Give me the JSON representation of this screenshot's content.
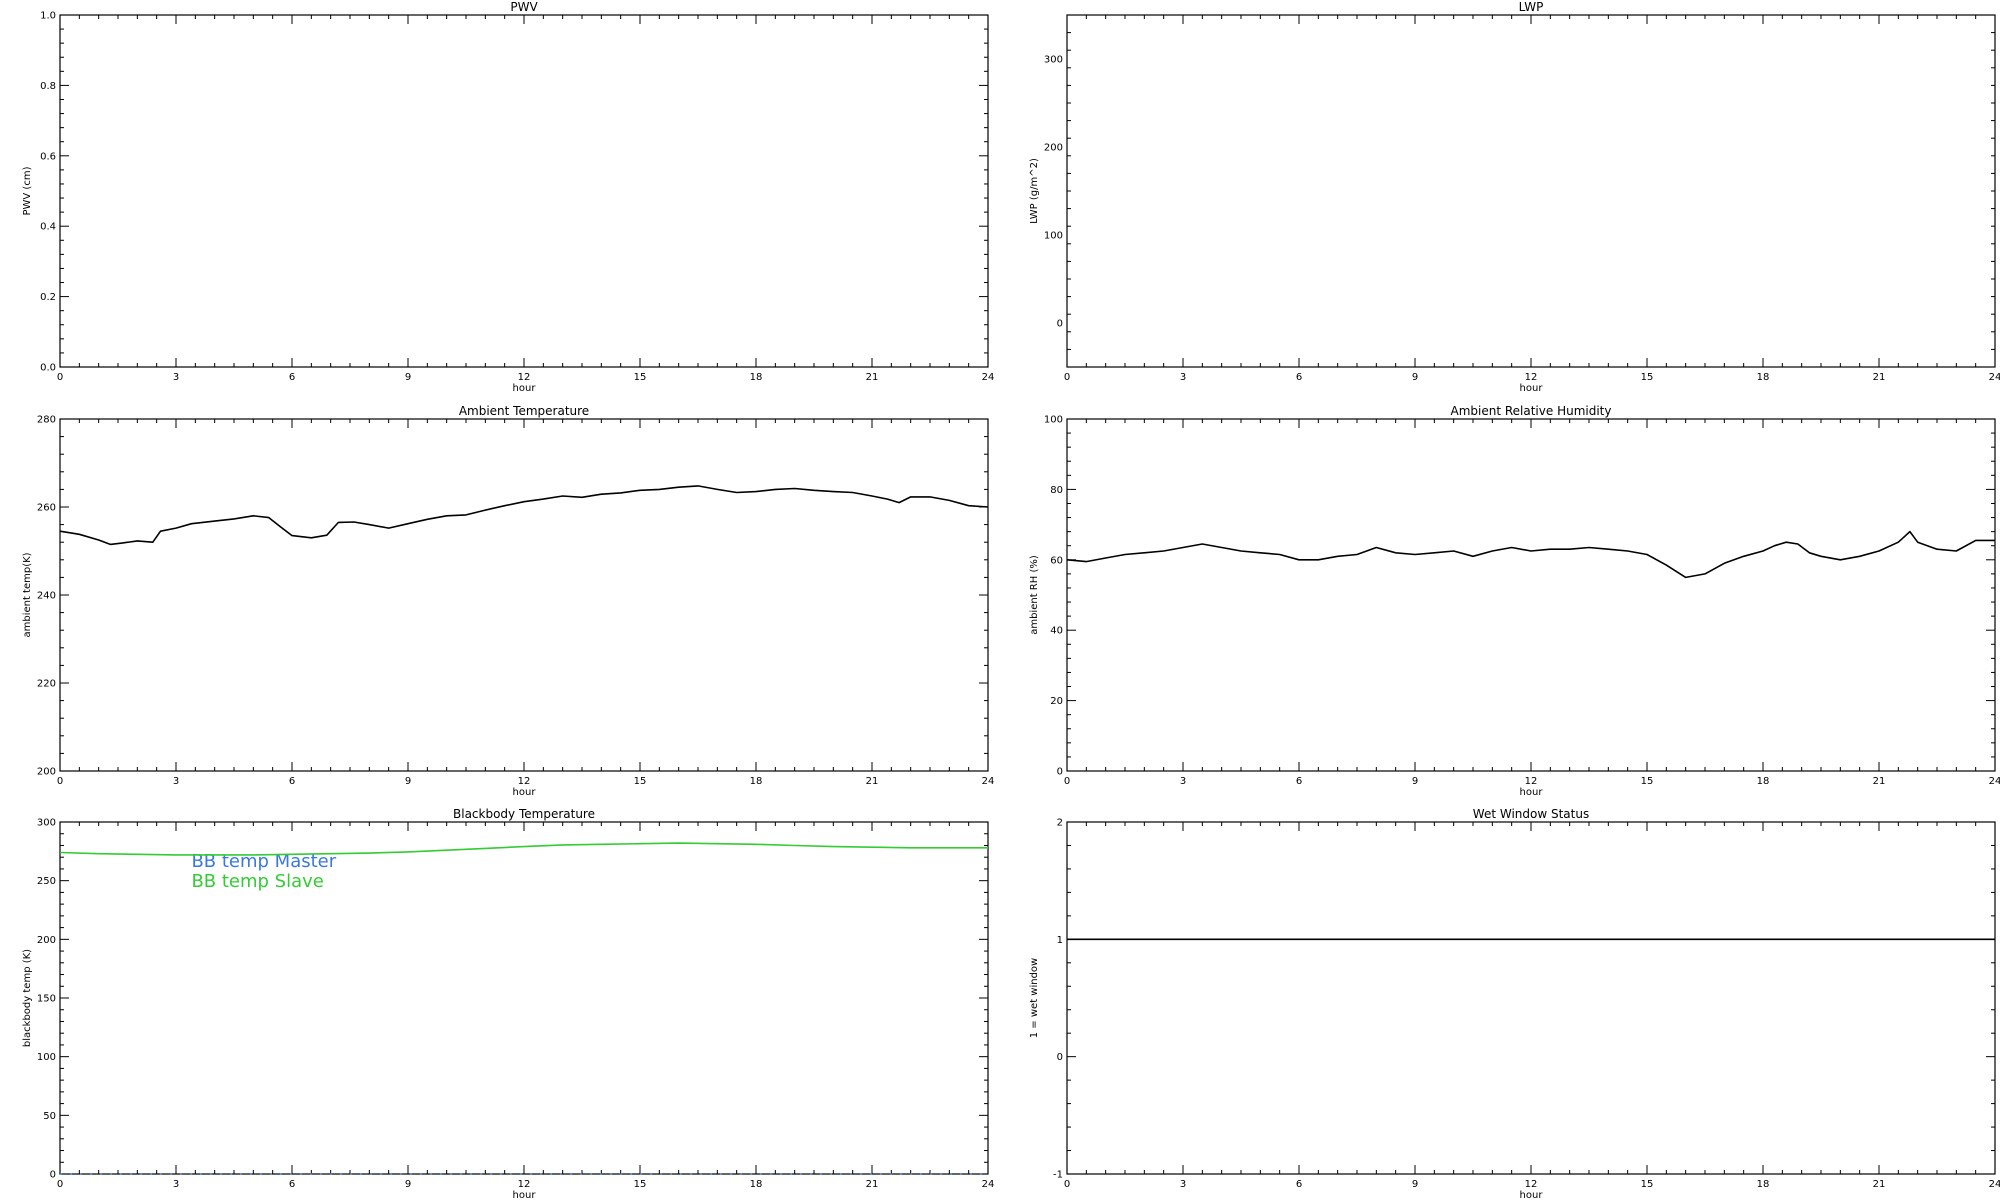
{
  "chart_data": [
    {
      "type": "line",
      "title": "PWV",
      "xlabel": "hour",
      "ylabel": "PWV (cm)",
      "xlim": [
        0,
        24
      ],
      "ylim": [
        0,
        1.0
      ],
      "xticks": [
        "0",
        "3",
        "6",
        "9",
        "12",
        "15",
        "18",
        "21",
        "24"
      ],
      "yticks": [
        "0.0",
        "0.2",
        "0.4",
        "0.6",
        "0.8",
        "1.0"
      ],
      "ytick_values": [
        0,
        0.2,
        0.4,
        0.6,
        0.8,
        1.0
      ],
      "series": []
    },
    {
      "type": "line",
      "title": "LWP",
      "xlabel": "hour",
      "ylabel": "LWP (g/m^2)",
      "xlim": [
        0,
        24
      ],
      "ylim": [
        -50,
        350
      ],
      "xticks": [
        "0",
        "3",
        "6",
        "9",
        "12",
        "15",
        "18",
        "21",
        "24"
      ],
      "yticks": [
        "0",
        "100",
        "200",
        "300"
      ],
      "ytick_values": [
        0,
        100,
        200,
        300
      ],
      "series": []
    },
    {
      "type": "line",
      "title": "Ambient Temperature",
      "xlabel": "hour",
      "ylabel": "ambient temp(K)",
      "xlim": [
        0,
        24
      ],
      "ylim": [
        200,
        280
      ],
      "xticks": [
        "0",
        "3",
        "6",
        "9",
        "12",
        "15",
        "18",
        "21",
        "24"
      ],
      "yticks": [
        "200",
        "220",
        "240",
        "260",
        "280"
      ],
      "ytick_values": [
        200,
        220,
        240,
        260,
        280
      ],
      "series": [
        {
          "color": "#000000",
          "x": [
            0,
            0.5,
            1.0,
            1.3,
            1.6,
            2.0,
            2.4,
            2.6,
            3.0,
            3.4,
            4.0,
            4.5,
            5.0,
            5.4,
            5.7,
            6.0,
            6.5,
            6.9,
            7.2,
            7.6,
            8.0,
            8.5,
            9.0,
            9.5,
            10.0,
            10.5,
            11.0,
            11.5,
            12.0,
            12.5,
            13.0,
            13.5,
            14.0,
            14.5,
            15.0,
            15.5,
            16.0,
            16.5,
            17.0,
            17.5,
            18.0,
            18.5,
            19.0,
            19.5,
            20.0,
            20.5,
            21.0,
            21.4,
            21.7,
            22.0,
            22.5,
            23.0,
            23.5,
            24.0
          ],
          "y": [
            254.5,
            253.8,
            252.5,
            251.5,
            251.8,
            252.3,
            252.0,
            254.5,
            255.2,
            256.2,
            256.8,
            257.3,
            258.0,
            257.6,
            255.5,
            253.5,
            253.0,
            253.6,
            256.5,
            256.6,
            256.0,
            255.2,
            256.2,
            257.2,
            258.0,
            258.2,
            259.3,
            260.3,
            261.2,
            261.8,
            262.5,
            262.2,
            262.9,
            263.2,
            263.8,
            264.0,
            264.5,
            264.8,
            264.0,
            263.3,
            263.5,
            264.0,
            264.2,
            263.8,
            263.5,
            263.3,
            262.5,
            261.8,
            261.0,
            262.3,
            262.3,
            261.5,
            260.3,
            260.0
          ]
        }
      ]
    },
    {
      "type": "line",
      "title": "Ambient Relative Humidity",
      "xlabel": "hour",
      "ylabel": "ambient RH (%)",
      "xlim": [
        0,
        24
      ],
      "ylim": [
        0,
        100
      ],
      "xticks": [
        "0",
        "3",
        "6",
        "9",
        "12",
        "15",
        "18",
        "21",
        "24"
      ],
      "yticks": [
        "0",
        "20",
        "40",
        "60",
        "80",
        "100"
      ],
      "ytick_values": [
        0,
        20,
        40,
        60,
        80,
        100
      ],
      "series": [
        {
          "color": "#000000",
          "x": [
            0,
            0.5,
            1.0,
            1.5,
            2.0,
            2.5,
            3.0,
            3.5,
            4.0,
            4.5,
            5.0,
            5.5,
            6.0,
            6.5,
            7.0,
            7.5,
            8.0,
            8.5,
            9.0,
            9.5,
            10.0,
            10.5,
            11.0,
            11.5,
            12.0,
            12.5,
            13.0,
            13.5,
            14.0,
            14.5,
            15.0,
            15.5,
            16.0,
            16.5,
            17.0,
            17.5,
            18.0,
            18.3,
            18.6,
            18.9,
            19.2,
            19.5,
            20.0,
            20.5,
            21.0,
            21.5,
            21.8,
            22.0,
            22.5,
            23.0,
            23.5,
            24.0
          ],
          "y": [
            60.0,
            59.5,
            60.5,
            61.5,
            62.0,
            62.5,
            63.5,
            64.5,
            63.5,
            62.5,
            62.0,
            61.5,
            60.0,
            60.0,
            61.0,
            61.5,
            63.5,
            62.0,
            61.5,
            62.0,
            62.5,
            61.0,
            62.5,
            63.5,
            62.5,
            63.0,
            63.0,
            63.5,
            63.0,
            62.5,
            61.5,
            58.5,
            55.0,
            56.0,
            59.0,
            61.0,
            62.5,
            64.0,
            65.0,
            64.5,
            62.0,
            61.0,
            60.0,
            61.0,
            62.5,
            65.0,
            68.0,
            65.0,
            63.0,
            62.5,
            65.5,
            65.5
          ]
        }
      ]
    },
    {
      "type": "line",
      "title": "Blackbody Temperature",
      "xlabel": "hour",
      "ylabel": "blackbody temp (K)",
      "xlim": [
        0,
        24
      ],
      "ylim": [
        0,
        300
      ],
      "xticks": [
        "0",
        "3",
        "6",
        "9",
        "12",
        "15",
        "18",
        "21",
        "24"
      ],
      "yticks": [
        "0",
        "50",
        "100",
        "150",
        "200",
        "250",
        "300"
      ],
      "ytick_values": [
        0,
        50,
        100,
        150,
        200,
        250,
        300
      ],
      "legend": [
        {
          "label": "BB temp Master",
          "color": "#3a78e0"
        },
        {
          "label": "BB temp Slave",
          "color": "#33cc33"
        }
      ],
      "series": [
        {
          "name": "BB temp Master",
          "color": "#3a78e0",
          "x": [
            0,
            24
          ],
          "y": [
            0,
            0
          ]
        },
        {
          "name": "BB temp Slave",
          "color": "#33cc33",
          "x": [
            0,
            1,
            2,
            3,
            4,
            5,
            6,
            7,
            8,
            9,
            10,
            11,
            12,
            13,
            14,
            15,
            16,
            17,
            18,
            19,
            20,
            21,
            22,
            23,
            24
          ],
          "y": [
            274,
            273,
            272.5,
            272,
            272,
            272,
            272.5,
            273,
            273.5,
            274.5,
            276,
            277.5,
            279,
            280.5,
            281,
            281.5,
            282,
            281.5,
            281,
            280,
            279,
            278.5,
            278,
            278,
            278
          ]
        }
      ]
    },
    {
      "type": "line",
      "title": "Wet Window Status",
      "xlabel": "hour",
      "ylabel": "1 = wet window",
      "xlim": [
        0,
        24
      ],
      "ylim": [
        -1,
        2
      ],
      "xticks": [
        "0",
        "3",
        "6",
        "9",
        "12",
        "15",
        "18",
        "21",
        "24"
      ],
      "yticks": [
        "-1",
        "0",
        "1",
        "2"
      ],
      "ytick_values": [
        -1,
        0,
        1,
        2
      ],
      "series": [
        {
          "color": "#000000",
          "x": [
            0,
            24
          ],
          "y": [
            1,
            1
          ]
        }
      ]
    }
  ]
}
